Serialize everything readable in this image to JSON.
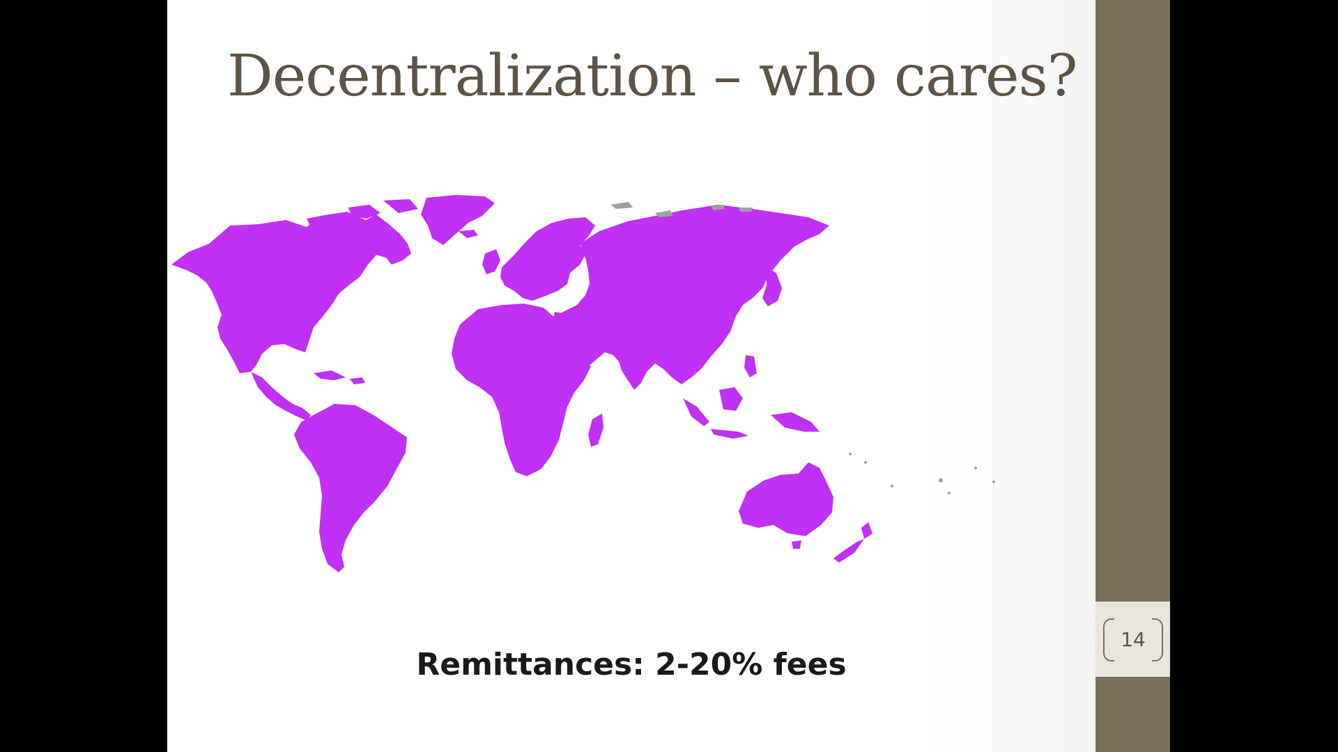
{
  "slide": {
    "title": "Decentralization – who cares?",
    "caption": "Remittances: 2-20% fees",
    "slide_number": "14"
  },
  "map": {
    "subject": "world-map",
    "land_color": "#c030f5",
    "minor_island_color": "#a0a0a0"
  },
  "colors": {
    "title": "#5d5445",
    "sidebar": "#7b7158",
    "number_panel": "#e9e6dd",
    "viewer_background": "#000000"
  }
}
